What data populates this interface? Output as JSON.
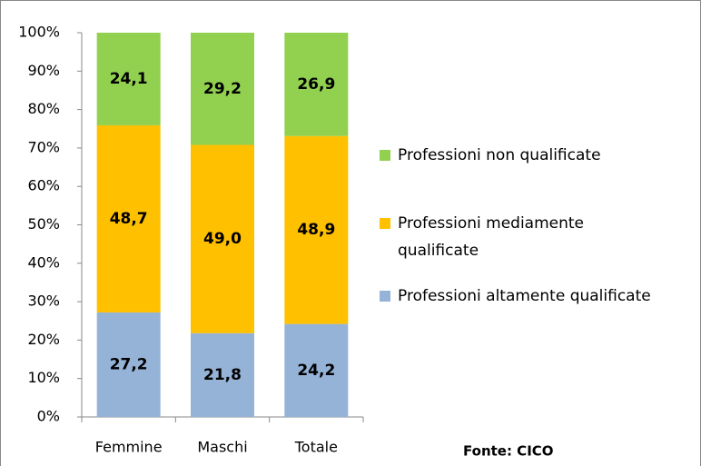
{
  "chart_data": {
    "type": "stacked_bar",
    "categories": [
      "Femmine",
      "Maschi",
      "Totale"
    ],
    "series": [
      {
        "name": "Professioni altamente qualificate",
        "color": "#95b3d7",
        "values": [
          27.2,
          21.8,
          24.2
        ],
        "value_labels": [
          "27,2",
          "21,8",
          "24,2"
        ]
      },
      {
        "name": "Professioni mediamente qualificate",
        "color": "#ffc000",
        "values": [
          48.7,
          49.0,
          48.9
        ],
        "value_labels": [
          "48,7",
          "49,0",
          "48,9"
        ]
      },
      {
        "name": "Professioni non qualificate",
        "color": "#92d050",
        "values": [
          24.1,
          29.2,
          26.9
        ],
        "value_labels": [
          "24,1",
          "29,2",
          "26,9"
        ]
      }
    ],
    "ylim": [
      0,
      100
    ],
    "yticks": [
      {
        "value": 0,
        "label": "0%"
      },
      {
        "value": 10,
        "label": "10%"
      },
      {
        "value": 20,
        "label": "20%"
      },
      {
        "value": 30,
        "label": "30%"
      },
      {
        "value": 40,
        "label": "40%"
      },
      {
        "value": 50,
        "label": "50%"
      },
      {
        "value": 60,
        "label": "60%"
      },
      {
        "value": 70,
        "label": "70%"
      },
      {
        "value": 80,
        "label": "80%"
      },
      {
        "value": 90,
        "label": "90%"
      },
      {
        "value": 100,
        "label": "100%"
      }
    ],
    "legend": "right",
    "annotation": "Fonte: CICO"
  }
}
